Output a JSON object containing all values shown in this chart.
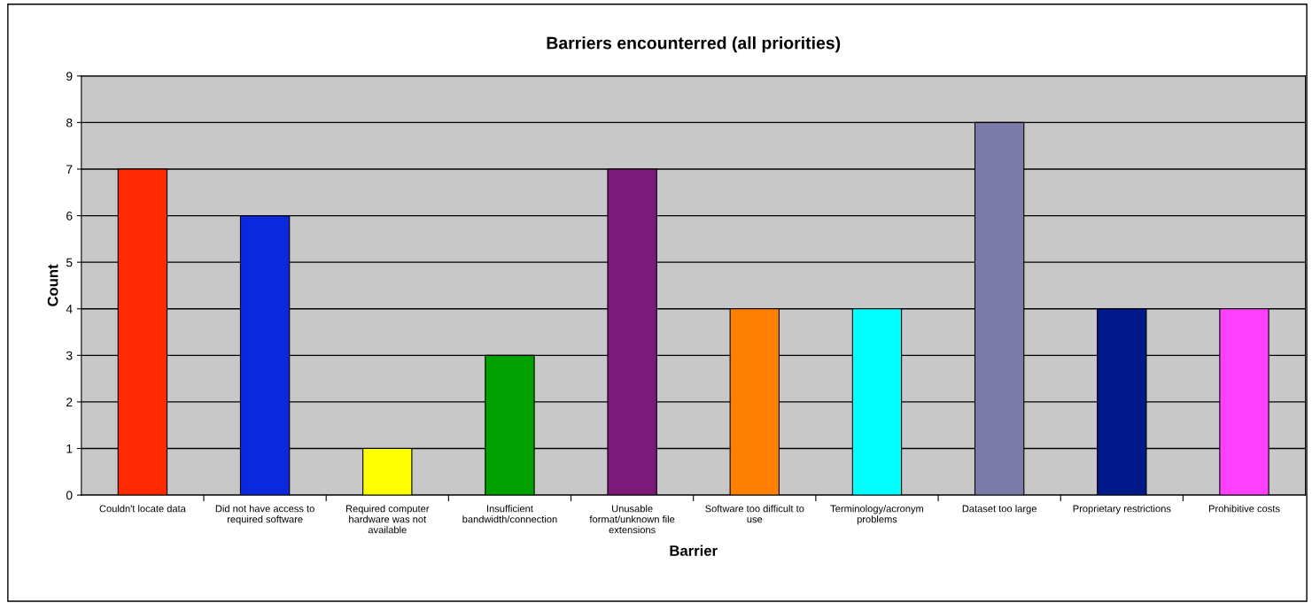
{
  "chart_data": {
    "type": "bar",
    "title": "Barriers encounterred (all priorities)",
    "xlabel": "Barrier",
    "ylabel": "Count",
    "categories": [
      "Couldn't locate data",
      "Did not have access to\nrequired software",
      "Required computer\nhardware was not\navailable",
      "Insufficient\nbandwidth/connection",
      "Unusable\nformat/unknown file\nextensions",
      "Software too difficult to\nuse",
      "Terminology/acronym\nproblems",
      "Dataset too large",
      "Proprietary restrictions",
      "Prohibitive costs"
    ],
    "values": [
      7,
      6,
      1,
      3,
      7,
      4,
      4,
      8,
      4,
      4
    ],
    "colors": [
      "#ff2a00",
      "#0a28dc",
      "#ffff00",
      "#00a000",
      "#7b1a78",
      "#ff7f00",
      "#00ffff",
      "#7b7baa",
      "#001a8c",
      "#ff40ff"
    ],
    "ylim": [
      0,
      9
    ],
    "yticks": [
      0,
      1,
      2,
      3,
      4,
      5,
      6,
      7,
      8,
      9
    ],
    "grid": "y",
    "legend": false
  }
}
